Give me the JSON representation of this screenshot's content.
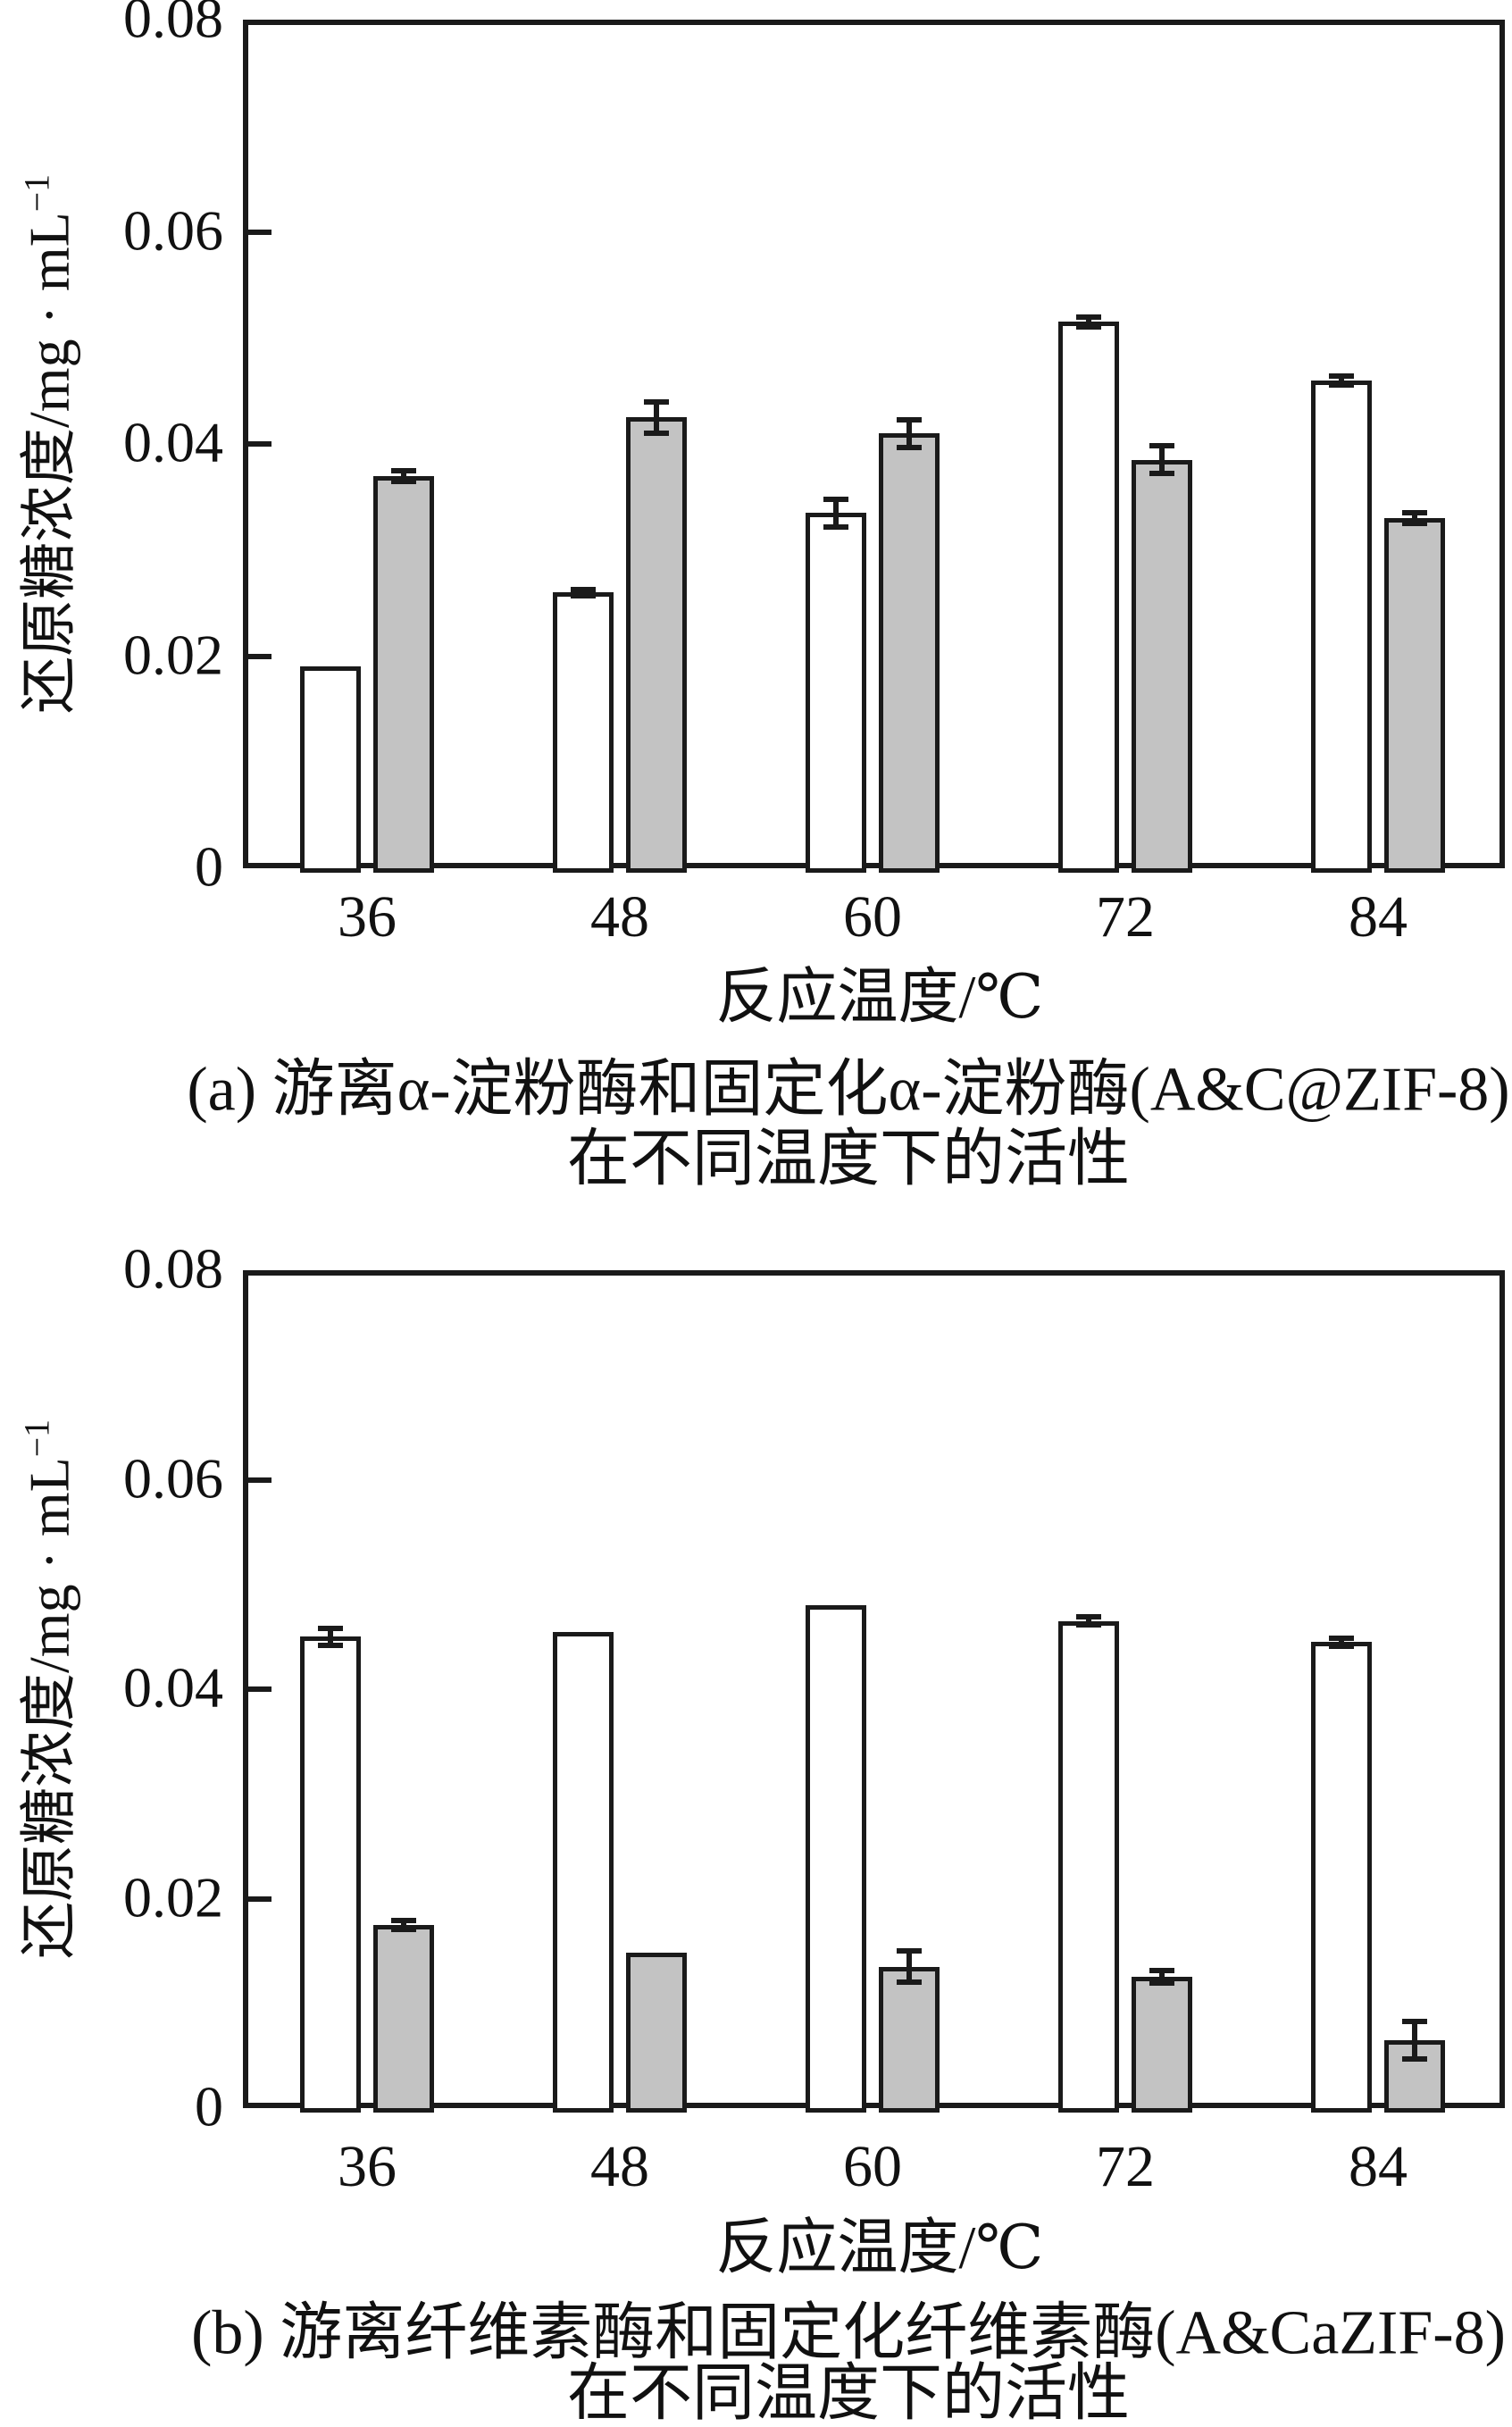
{
  "figure": {
    "y_axis_label_main": "还原糖浓度/mg · mL",
    "y_axis_label_sup": "−1",
    "colors": {
      "stroke": "#1a1a1a",
      "bar_fill_immobilized": "#ffffff",
      "bar_fill_free": "#c3c3c3",
      "background": "#ffffff"
    },
    "captions": {
      "a": {
        "line1": "(a) 游离α-淀粉酶和固定化α-淀粉酶(A&C@ZIF-8)",
        "line2": "在不同温度下的活性"
      },
      "b": {
        "line1": "(b) 游离纤维素酶和固定化纤维素酶(A&CaZIF-8)",
        "line2": "在不同温度下的活性"
      }
    }
  },
  "chart_data": [
    {
      "type": "bar",
      "title": "(a) 游离α-淀粉酶和固定化α-淀粉酶(A&C@ZIF-8) 在不同温度下的活性",
      "categories": [
        "36",
        "48",
        "60",
        "72",
        "84"
      ],
      "xlabel": "反应温度/℃",
      "ylabel": "还原糖浓度/mg · mL⁻¹",
      "ylim": [
        0,
        0.08
      ],
      "yticks": [
        0,
        0.02,
        0.04,
        0.06,
        0.08
      ],
      "grid": false,
      "legend_position": "upper-left-inside",
      "series": [
        {
          "name": "固定化α-淀粉酶",
          "fill": "#ffffff",
          "values": [
            0.019,
            0.026,
            0.0335,
            0.0515,
            0.046
          ],
          "errors": [
            0,
            0.0003,
            0.0013,
            0.0005,
            0.0004
          ]
        },
        {
          "name": "游离α-淀粉酶",
          "fill": "#c3c3c3",
          "values": [
            0.037,
            0.0425,
            0.041,
            0.0385,
            0.033
          ],
          "errors": [
            0.0005,
            0.0015,
            0.0013,
            0.0013,
            0.0005
          ]
        }
      ]
    },
    {
      "type": "bar",
      "title": "(b) 游离纤维素酶和固定化纤维素酶(A&CaZIF-8) 在不同温度下的活性",
      "categories": [
        "36",
        "48",
        "60",
        "72",
        "84"
      ],
      "xlabel": "反应温度/℃",
      "ylabel": "还原糖浓度/mg · mL⁻¹",
      "ylim": [
        0,
        0.08
      ],
      "yticks": [
        0,
        0.02,
        0.04,
        0.06,
        0.08
      ],
      "grid": false,
      "legend_position": "upper-left-inside",
      "series": [
        {
          "name": "固定化纤维素酶",
          "fill": "#ffffff",
          "values": [
            0.045,
            0.0455,
            0.048,
            0.0465,
            0.0445
          ],
          "errors": [
            0.0008,
            0,
            0,
            0.0004,
            0.0004
          ]
        },
        {
          "name": "游离纤维素酶",
          "fill": "#c3c3c3",
          "values": [
            0.0175,
            0.0148,
            0.0135,
            0.0125,
            0.0065
          ],
          "errors": [
            0.0004,
            0,
            0.0015,
            0.0006,
            0.0018
          ]
        }
      ]
    }
  ]
}
